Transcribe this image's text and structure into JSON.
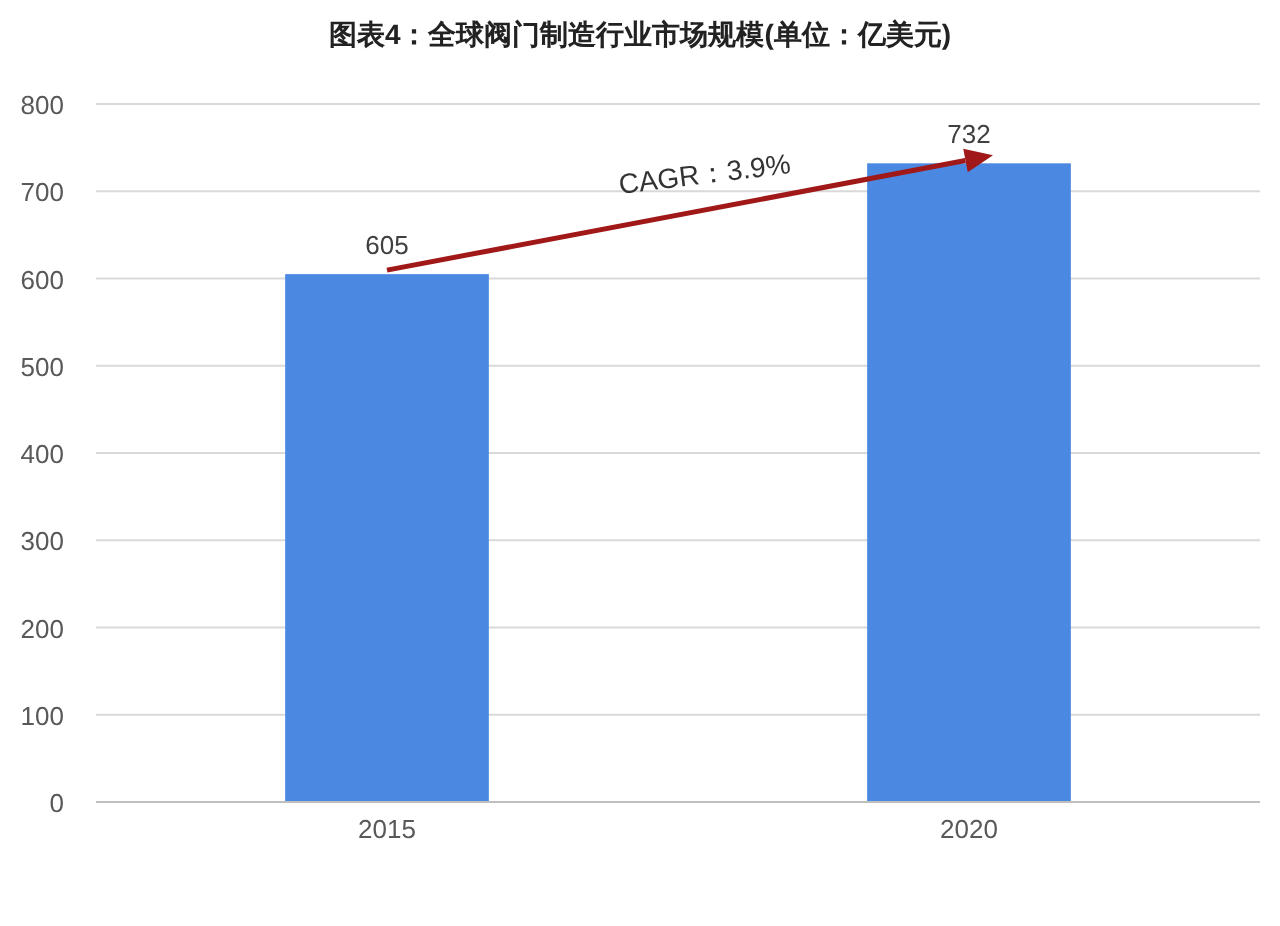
{
  "chart_data": {
    "type": "bar",
    "title": "图表4：全球阀门制造行业市场规模(单位：亿美元)",
    "categories": [
      "2015",
      "2020"
    ],
    "values": [
      605,
      732
    ],
    "color": "#4a88e2",
    "ylim": [
      0,
      800
    ],
    "yticks": [
      0,
      100,
      200,
      300,
      400,
      500,
      600,
      700,
      800
    ],
    "grid": "y",
    "data_labels": true,
    "annotations": [
      "CAGR：3.9%"
    ]
  }
}
